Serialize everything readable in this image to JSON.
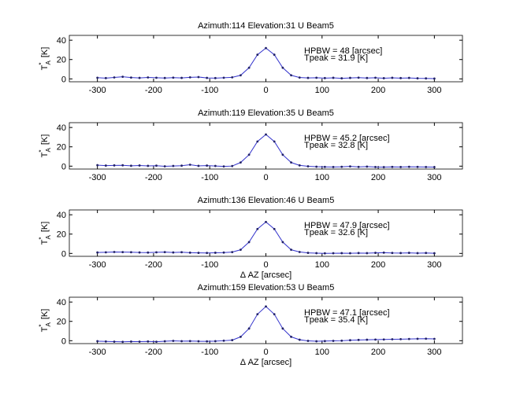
{
  "chart_data": [
    {
      "type": "line",
      "title": "Azimuth:114 Elevation:31 U Beam5",
      "ylabel": {
        "base": "T",
        "sup": "*",
        "sub": "A",
        "unit": "[K]"
      },
      "annotations": [
        "HPBW = 48 [arcsec]",
        "Tpeak = 31.9 [K]"
      ],
      "x": [
        -300,
        -285,
        -270,
        -255,
        -240,
        -225,
        -210,
        -195,
        -180,
        -165,
        -150,
        -135,
        -120,
        -105,
        -90,
        -75,
        -60,
        -45,
        -30,
        -15,
        0,
        15,
        30,
        45,
        60,
        75,
        90,
        105,
        120,
        135,
        150,
        165,
        180,
        195,
        210,
        225,
        240,
        255,
        270,
        285,
        300
      ],
      "series": [
        {
          "color": "#3333cc",
          "values": [
            1.2,
            0.8,
            1.5,
            2.2,
            1.4,
            1,
            1.5,
            1.2,
            0.9,
            1.3,
            1,
            1.6,
            1.9,
            1,
            0.8,
            1.2,
            1.6,
            3.7,
            11.5,
            25,
            31.9,
            25,
            11.5,
            3.7,
            1.4,
            1,
            1.2,
            0.8,
            1.1,
            0.6,
            1,
            1.3,
            0.9,
            1.2,
            0.7,
            1.1,
            0.8,
            1,
            0.6,
            0.5,
            0.3
          ]
        }
      ],
      "xlim": [
        -350,
        350
      ],
      "ylim": [
        -3,
        45
      ],
      "xticks": [
        -300,
        -200,
        -100,
        0,
        100,
        200,
        300
      ],
      "yticks": [
        0,
        20,
        40
      ]
    },
    {
      "type": "line",
      "title": "Azimuth:119 Elevation:35 U Beam5",
      "ylabel": {
        "base": "T",
        "sup": "*",
        "sub": "A",
        "unit": "[K]"
      },
      "annotations": [
        "HPBW = 45.2 [arcsec]",
        "Tpeak = 32.8 [K]"
      ],
      "x": [
        -300,
        -285,
        -270,
        -255,
        -240,
        -225,
        -210,
        -195,
        -180,
        -165,
        -150,
        -135,
        -120,
        -105,
        -90,
        -75,
        -60,
        -45,
        -30,
        -15,
        0,
        15,
        30,
        45,
        60,
        75,
        90,
        105,
        120,
        135,
        150,
        165,
        180,
        195,
        210,
        225,
        240,
        255,
        270,
        285,
        300
      ],
      "series": [
        {
          "color": "#3333cc",
          "values": [
            1,
            0.6,
            0.8,
            0.9,
            0.4,
            0.7,
            0.3,
            0.5,
            -0.2,
            0.2,
            0.5,
            1.5,
            0.3,
            0.6,
            0.2,
            -0.3,
            0.1,
            3.8,
            11.8,
            25.5,
            32.8,
            25.5,
            11.8,
            3.8,
            0.8,
            -0.2,
            -0.6,
            -0.8,
            -0.9,
            -0.7,
            -0.3,
            -0.8,
            -0.5,
            -0.9,
            -1,
            -0.8,
            -0.9,
            -0.7,
            -0.8,
            -0.9,
            -1
          ]
        }
      ],
      "xlim": [
        -350,
        350
      ],
      "ylim": [
        -3,
        45
      ],
      "xticks": [
        -300,
        -200,
        -100,
        0,
        100,
        200,
        300
      ],
      "yticks": [
        0,
        20,
        40
      ]
    },
    {
      "type": "line",
      "title": "Azimuth:136 Elevation:46 U Beam5",
      "ylabel": {
        "base": "T",
        "sup": "*",
        "sub": "A",
        "unit": "[K]"
      },
      "xlabel": "Δ AZ  [arcsec]",
      "annotations": [
        "HPBW = 47.9 [arcsec]",
        "Tpeak = 32.6 [K]"
      ],
      "x": [
        -300,
        -285,
        -270,
        -255,
        -240,
        -225,
        -210,
        -195,
        -180,
        -165,
        -150,
        -135,
        -120,
        -105,
        -90,
        -75,
        -60,
        -45,
        -30,
        -15,
        0,
        15,
        30,
        45,
        60,
        75,
        90,
        105,
        120,
        135,
        150,
        165,
        180,
        195,
        210,
        225,
        240,
        255,
        270,
        285,
        300
      ],
      "series": [
        {
          "color": "#3333cc",
          "values": [
            1,
            1.2,
            1.5,
            1.4,
            1.3,
            1,
            0.9,
            1.2,
            1.4,
            1,
            1.3,
            0.8,
            0.6,
            0.5,
            0.7,
            0.9,
            1.4,
            3.8,
            11.7,
            25.3,
            32.6,
            25.3,
            11.7,
            3.8,
            1.5,
            0.6,
            0.3,
            0.1,
            0.2,
            0.3,
            0.2,
            0.4,
            0.3,
            0.6,
            0.8,
            0.5,
            0.4,
            0.6,
            0.3,
            0.5,
            0.2
          ]
        }
      ],
      "xlim": [
        -350,
        350
      ],
      "ylim": [
        -3,
        45
      ],
      "xticks": [
        -300,
        -200,
        -100,
        0,
        100,
        200,
        300
      ],
      "yticks": [
        0,
        20,
        40
      ]
    },
    {
      "type": "line",
      "title": "Azimuth:159 Elevation:53 U Beam5",
      "ylabel": {
        "base": "T",
        "sup": "*",
        "sub": "A",
        "unit": "[K]"
      },
      "xlabel": "Δ AZ  [arcsec]",
      "annotations": [
        "HPBW = 47.1 [arcsec]",
        "Tpeak = 35.4 [K]"
      ],
      "x": [
        -300,
        -285,
        -270,
        -255,
        -240,
        -225,
        -210,
        -195,
        -180,
        -165,
        -150,
        -135,
        -120,
        -105,
        -90,
        -75,
        -60,
        -45,
        -30,
        -15,
        0,
        15,
        30,
        45,
        60,
        75,
        90,
        105,
        120,
        135,
        150,
        165,
        180,
        195,
        210,
        225,
        240,
        255,
        270,
        285,
        300
      ],
      "series": [
        {
          "color": "#3333cc",
          "values": [
            -0.5,
            -0.8,
            -1,
            -1.2,
            -0.9,
            -1,
            -0.8,
            -1.1,
            -0.6,
            -0.2,
            -0.5,
            -0.4,
            -0.6,
            -0.7,
            -0.5,
            0,
            0.6,
            4,
            12.6,
            27.4,
            35.4,
            27.4,
            12.6,
            4,
            1,
            -0.2,
            -0.6,
            -0.4,
            -0.2,
            0,
            0.5,
            0.8,
            1,
            1.2,
            1.3,
            1.5,
            1.6,
            1.8,
            2,
            2.1,
            1.9
          ]
        }
      ],
      "xlim": [
        -350,
        350
      ],
      "ylim": [
        -3,
        45
      ],
      "xticks": [
        -300,
        -200,
        -100,
        0,
        100,
        200,
        300
      ],
      "yticks": [
        0,
        20,
        40
      ]
    }
  ]
}
